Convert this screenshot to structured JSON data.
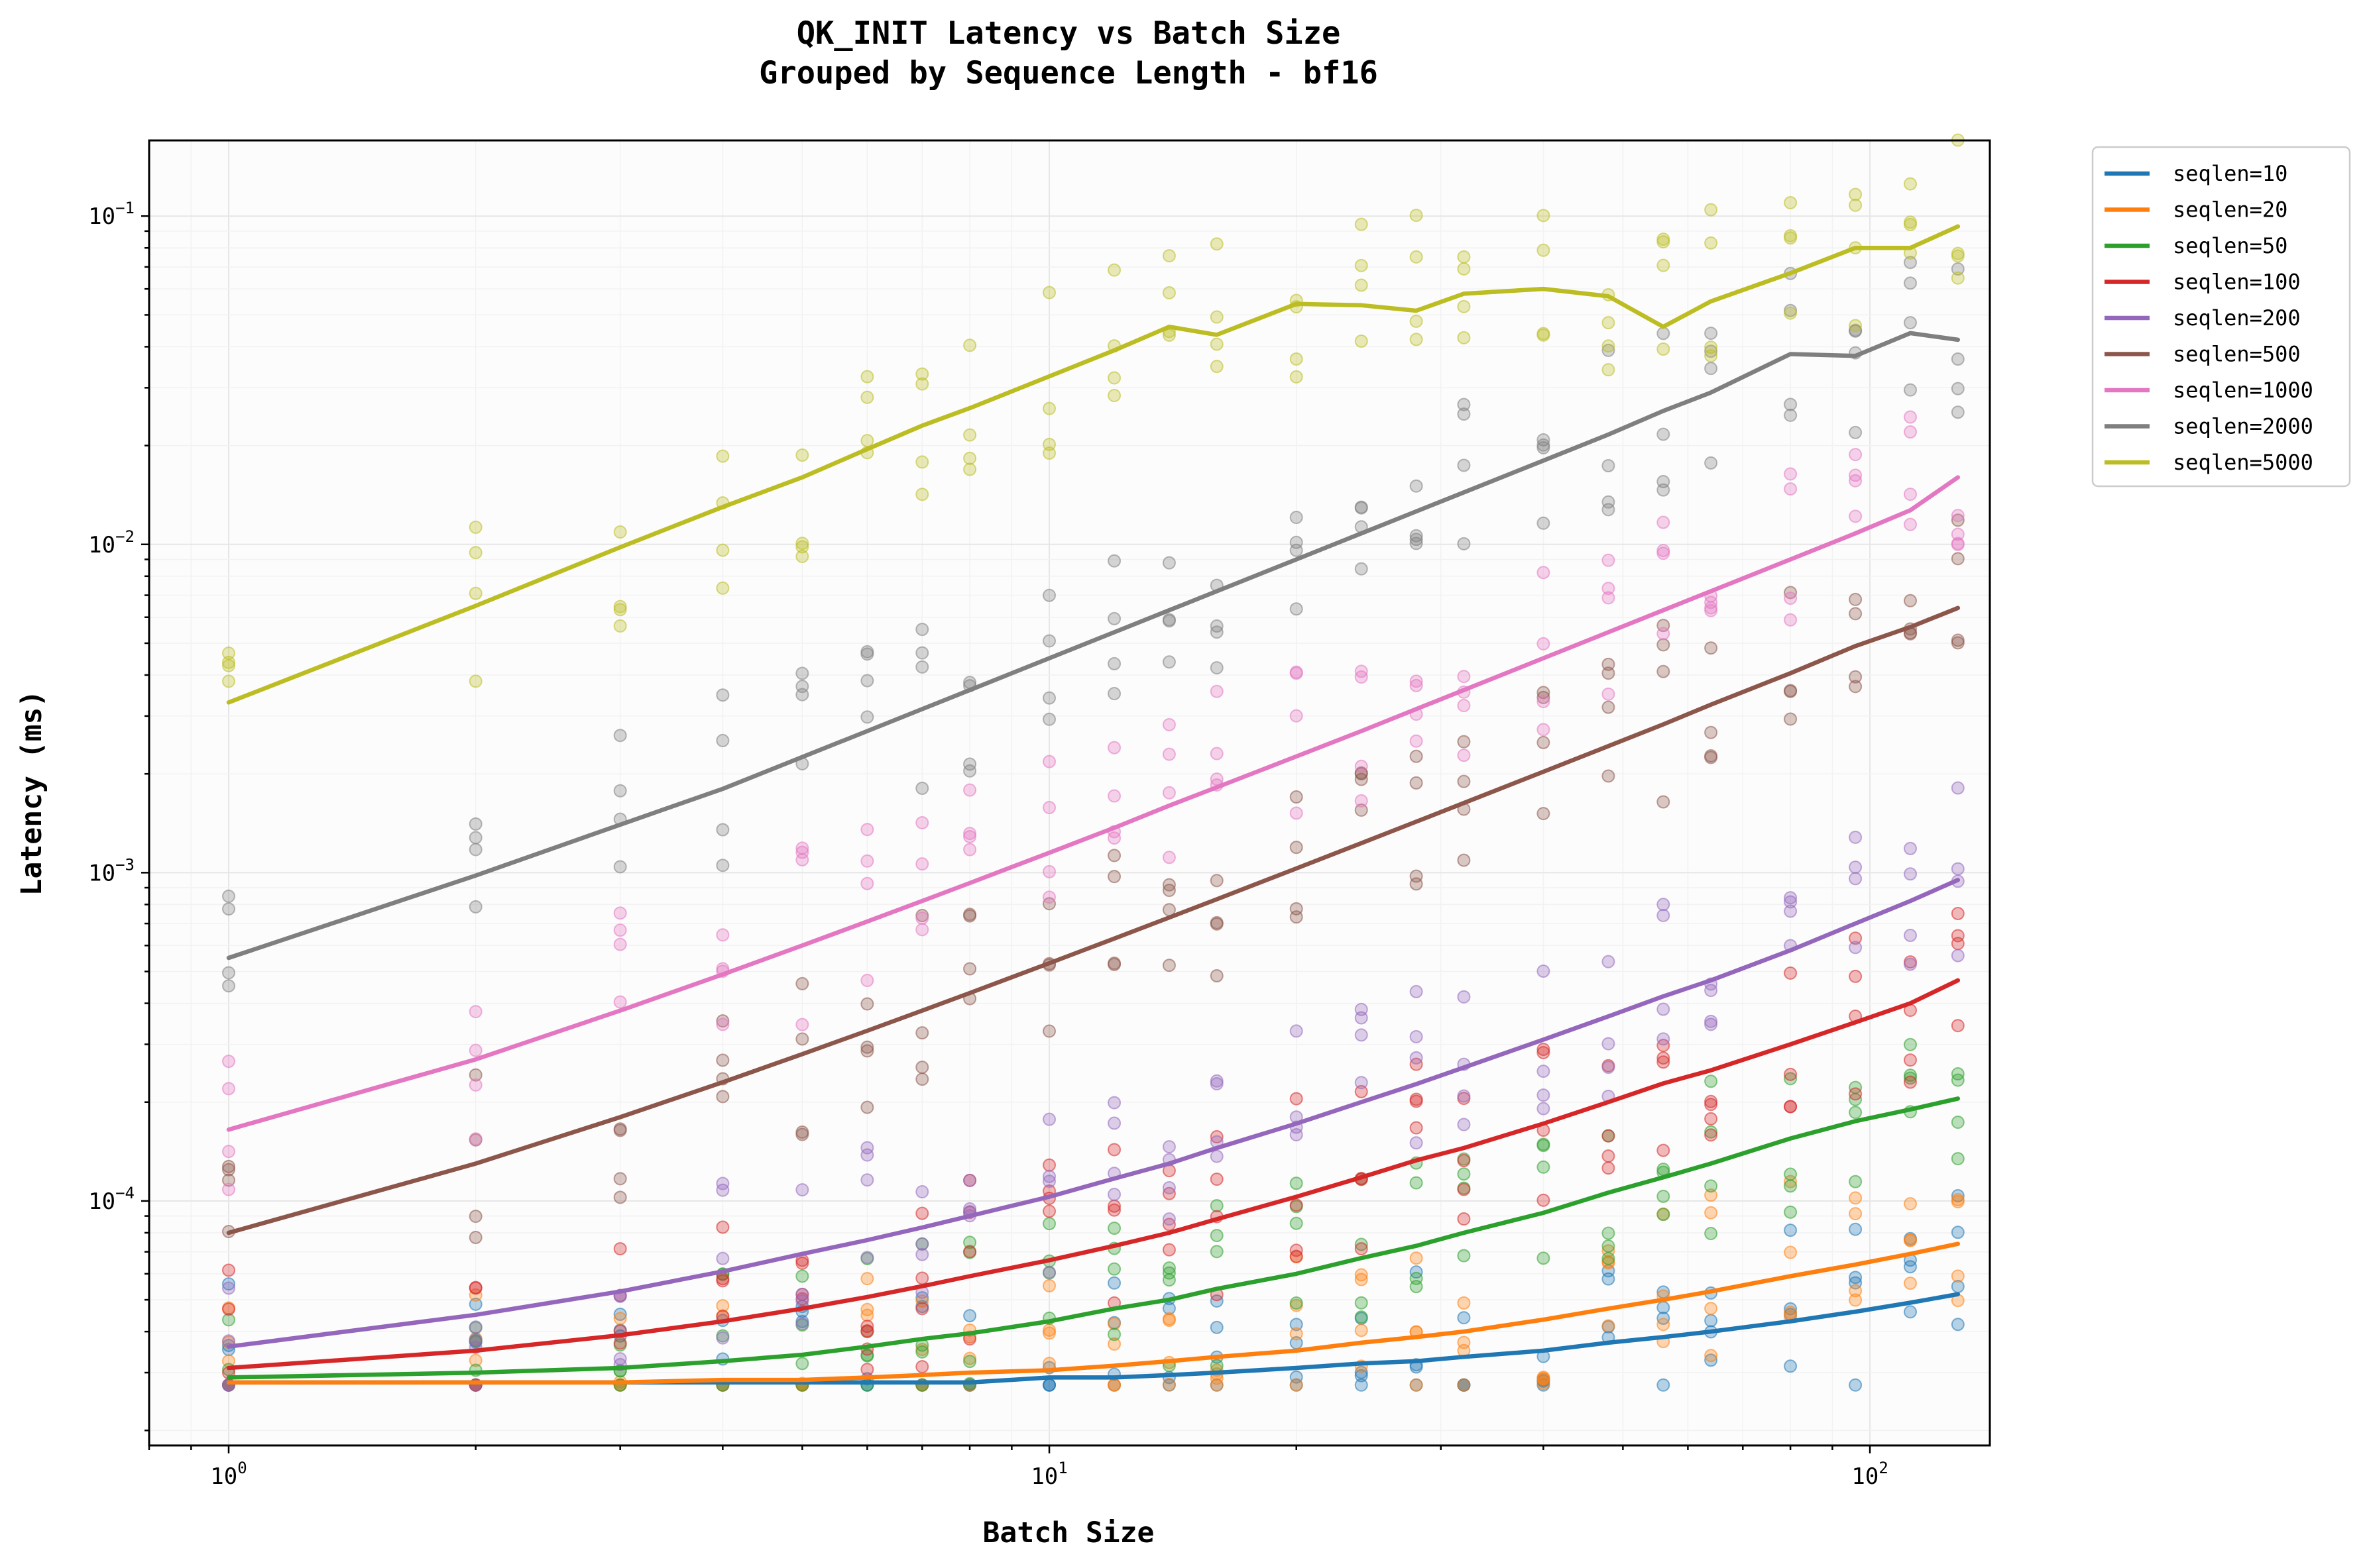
{
  "chart_data": {
    "type": "line",
    "title": "QK_INIT Latency vs Batch Size",
    "subtitle": "Grouped by Sequence Length - bf16",
    "xlabel": "Batch Size",
    "ylabel": "Latency (ms)",
    "xscale": "log",
    "yscale": "log",
    "xlim": [
      0.8,
      140
    ],
    "ylim": [
      1.8e-05,
      0.17
    ],
    "grid": true,
    "legend_position": "outside-right-top",
    "x_ticks": [
      {
        "base": "10",
        "exp": "0"
      },
      {
        "base": "10",
        "exp": "1"
      },
      {
        "base": "10",
        "exp": "2"
      }
    ],
    "y_ticks": [
      {
        "base": "10",
        "exp": "−4"
      },
      {
        "base": "10",
        "exp": "−3"
      },
      {
        "base": "10",
        "exp": "−2"
      },
      {
        "base": "10",
        "exp": "−1"
      }
    ],
    "x_tick_values": [
      1,
      10,
      100
    ],
    "y_tick_values": [
      0.0001,
      0.001,
      0.01,
      0.1
    ],
    "batch_sizes": [
      1,
      2,
      3,
      4,
      5,
      6,
      7,
      8,
      10,
      12,
      14,
      16,
      20,
      24,
      28,
      32,
      40,
      48,
      56,
      64,
      80,
      96,
      112,
      128
    ],
    "series": [
      {
        "name": "seqlen=10",
        "color": "#1f77b4",
        "values": [
          2.8e-05,
          2.8e-05,
          2.8e-05,
          2.8e-05,
          2.8e-05,
          2.8e-05,
          2.8e-05,
          2.8e-05,
          2.9e-05,
          2.9e-05,
          2.95e-05,
          3e-05,
          3.1e-05,
          3.2e-05,
          3.25e-05,
          3.35e-05,
          3.5e-05,
          3.7e-05,
          3.85e-05,
          4e-05,
          4.3e-05,
          4.6e-05,
          4.9e-05,
          5.2e-05
        ]
      },
      {
        "name": "seqlen=20",
        "color": "#ff7f0e",
        "values": [
          2.8e-05,
          2.8e-05,
          2.8e-05,
          2.85e-05,
          2.85e-05,
          2.9e-05,
          2.95e-05,
          3e-05,
          3.05e-05,
          3.15e-05,
          3.25e-05,
          3.35e-05,
          3.5e-05,
          3.7e-05,
          3.85e-05,
          4e-05,
          4.35e-05,
          4.7e-05,
          5e-05,
          5.3e-05,
          5.9e-05,
          6.4e-05,
          6.9e-05,
          7.4e-05
        ]
      },
      {
        "name": "seqlen=50",
        "color": "#2ca02c",
        "values": [
          2.9e-05,
          3e-05,
          3.1e-05,
          3.25e-05,
          3.4e-05,
          3.6e-05,
          3.8e-05,
          3.95e-05,
          4.3e-05,
          4.7e-05,
          5e-05,
          5.4e-05,
          6e-05,
          6.7e-05,
          7.3e-05,
          8e-05,
          9.2e-05,
          0.000106,
          0.000118,
          0.00013,
          0.000155,
          0.000175,
          0.00019,
          0.000205
        ]
      },
      {
        "name": "seqlen=100",
        "color": "#d62728",
        "values": [
          3.1e-05,
          3.5e-05,
          3.9e-05,
          4.3e-05,
          4.7e-05,
          5.1e-05,
          5.5e-05,
          5.9e-05,
          6.6e-05,
          7.3e-05,
          8e-05,
          8.8e-05,
          0.000103,
          0.000118,
          0.000133,
          0.000145,
          0.000172,
          0.0002,
          0.000228,
          0.00025,
          0.0003,
          0.00035,
          0.0004,
          0.00047
        ]
      },
      {
        "name": "seqlen=200",
        "color": "#9467bd",
        "values": [
          3.6e-05,
          4.5e-05,
          5.3e-05,
          6.1e-05,
          6.9e-05,
          7.6e-05,
          8.3e-05,
          9e-05,
          0.000103,
          0.000117,
          0.00013,
          0.000145,
          0.000172,
          0.0002,
          0.000227,
          0.000255,
          0.00031,
          0.000365,
          0.00042,
          0.00047,
          0.00058,
          0.0007,
          0.00082,
          0.00095
        ]
      },
      {
        "name": "seqlen=500",
        "color": "#8c564b",
        "values": [
          8e-05,
          0.00013,
          0.00018,
          0.00023,
          0.00028,
          0.00033,
          0.00038,
          0.00043,
          0.00053,
          0.00063,
          0.00073,
          0.00083,
          0.00103,
          0.00123,
          0.00143,
          0.00163,
          0.00203,
          0.00243,
          0.00283,
          0.00325,
          0.00405,
          0.0049,
          0.0056,
          0.0064
        ]
      },
      {
        "name": "seqlen=1000",
        "color": "#e377c2",
        "values": [
          0.000165,
          0.00027,
          0.00038,
          0.00049,
          0.0006,
          0.00071,
          0.00082,
          0.00093,
          0.00115,
          0.00137,
          0.0016,
          0.00182,
          0.00226,
          0.0027,
          0.00315,
          0.0036,
          0.0045,
          0.0054,
          0.0063,
          0.0072,
          0.009,
          0.0108,
          0.0127,
          0.016
        ]
      },
      {
        "name": "seqlen=2000",
        "color": "#7f7f7f",
        "values": [
          0.00055,
          0.00098,
          0.0014,
          0.0018,
          0.00225,
          0.0027,
          0.00315,
          0.0036,
          0.0045,
          0.0054,
          0.0063,
          0.0072,
          0.009,
          0.0108,
          0.0126,
          0.0144,
          0.018,
          0.0216,
          0.0255,
          0.029,
          0.038,
          0.0375,
          0.044,
          0.042
        ]
      },
      {
        "name": "seqlen=5000",
        "color": "#bcbd22",
        "values": [
          0.0033,
          0.0065,
          0.0098,
          0.013,
          0.016,
          0.0195,
          0.023,
          0.026,
          0.0325,
          0.039,
          0.046,
          0.0435,
          0.054,
          0.0535,
          0.0515,
          0.058,
          0.06,
          0.057,
          0.046,
          0.055,
          0.067,
          0.08,
          0.08,
          0.093
        ]
      }
    ]
  }
}
